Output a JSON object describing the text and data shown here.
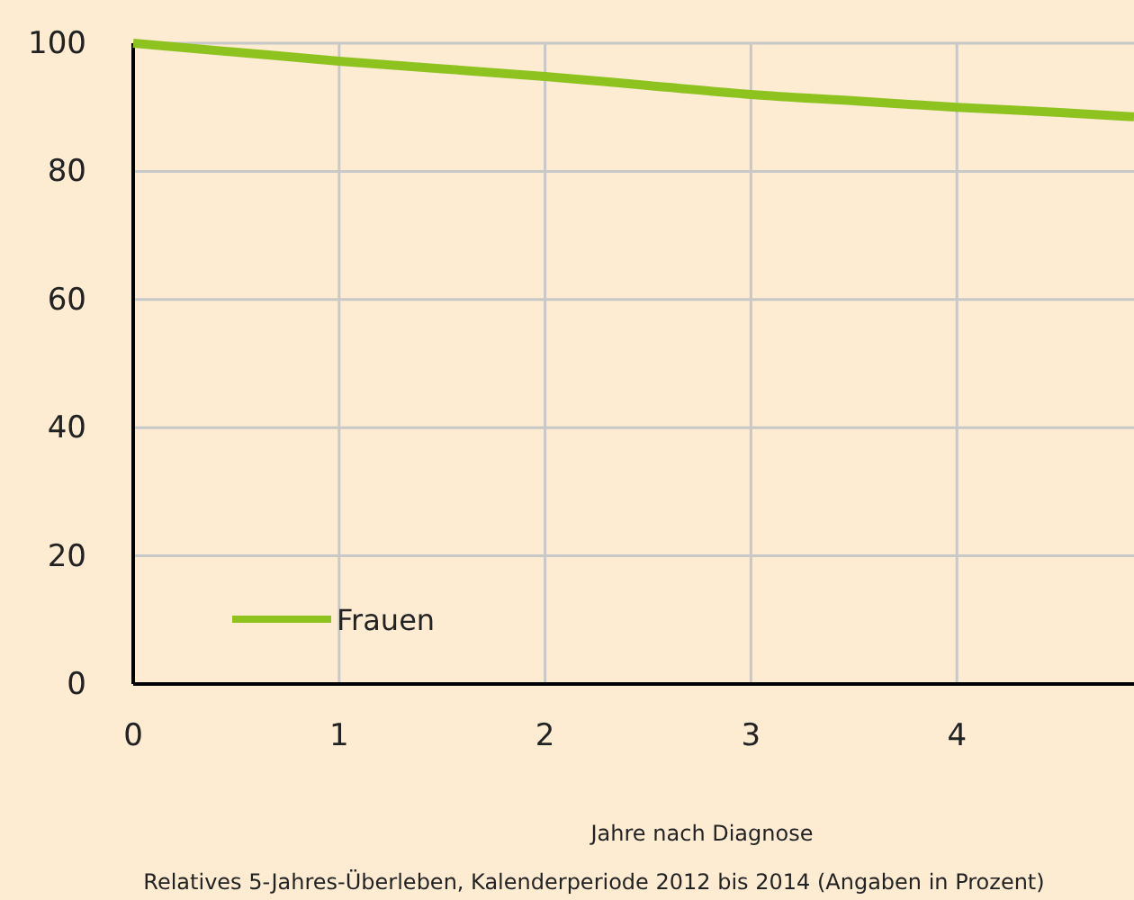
{
  "chart_data": {
    "type": "line",
    "xlabel": "Jahre nach Diagnose",
    "annotations": [
      "Relatives 5-Jahres-Überleben, Kalenderperiode 2012 bis 2014 (Angaben in Prozent)"
    ],
    "x": [
      0,
      0.5,
      1,
      1.5,
      2,
      2.5,
      3,
      3.5,
      4,
      4.5,
      4.86
    ],
    "series": [
      {
        "name": "Frauen",
        "color": "#8dc21f",
        "values": [
          100,
          98.6,
          97.2,
          96,
          94.8,
          93.4,
          92,
          91,
          90,
          89.2,
          88.5
        ]
      }
    ],
    "xlim": [
      0,
      4.86
    ],
    "xticks": [
      0,
      1,
      2,
      3,
      4
    ],
    "ylim": [
      0,
      100
    ],
    "yticks": [
      0,
      20,
      40,
      60,
      80,
      100
    ],
    "grid": true,
    "legend": "bottom left",
    "marker": "none",
    "line_style": "solid"
  }
}
